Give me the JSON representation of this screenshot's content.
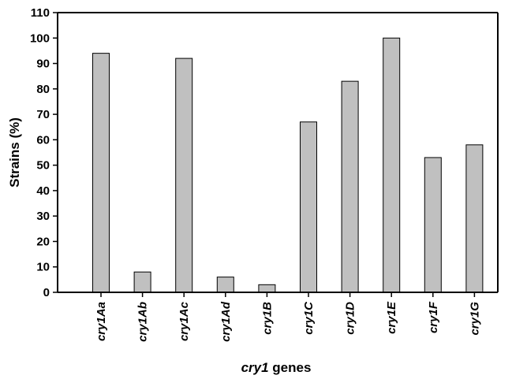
{
  "chart_data": {
    "type": "bar",
    "categories": [
      "cry1Aa",
      "cry1Ab",
      "cry1Ac",
      "cry1Ad",
      "cry1B",
      "cry1C",
      "cry1D",
      "cry1E",
      "cry1F",
      "cry1G"
    ],
    "values": [
      94,
      8,
      92,
      6,
      3,
      67,
      83,
      100,
      53,
      58
    ],
    "xlabel_italic": "cry1",
    "xlabel_rest": " genes",
    "ylabel": "Strains  (%)",
    "ylim": [
      0,
      110
    ],
    "yticks": [
      0,
      10,
      20,
      30,
      40,
      50,
      60,
      70,
      80,
      90,
      100,
      110
    ],
    "grid": false,
    "bar_color": "#c0c0c0",
    "bar_edge_color": "#000000"
  }
}
